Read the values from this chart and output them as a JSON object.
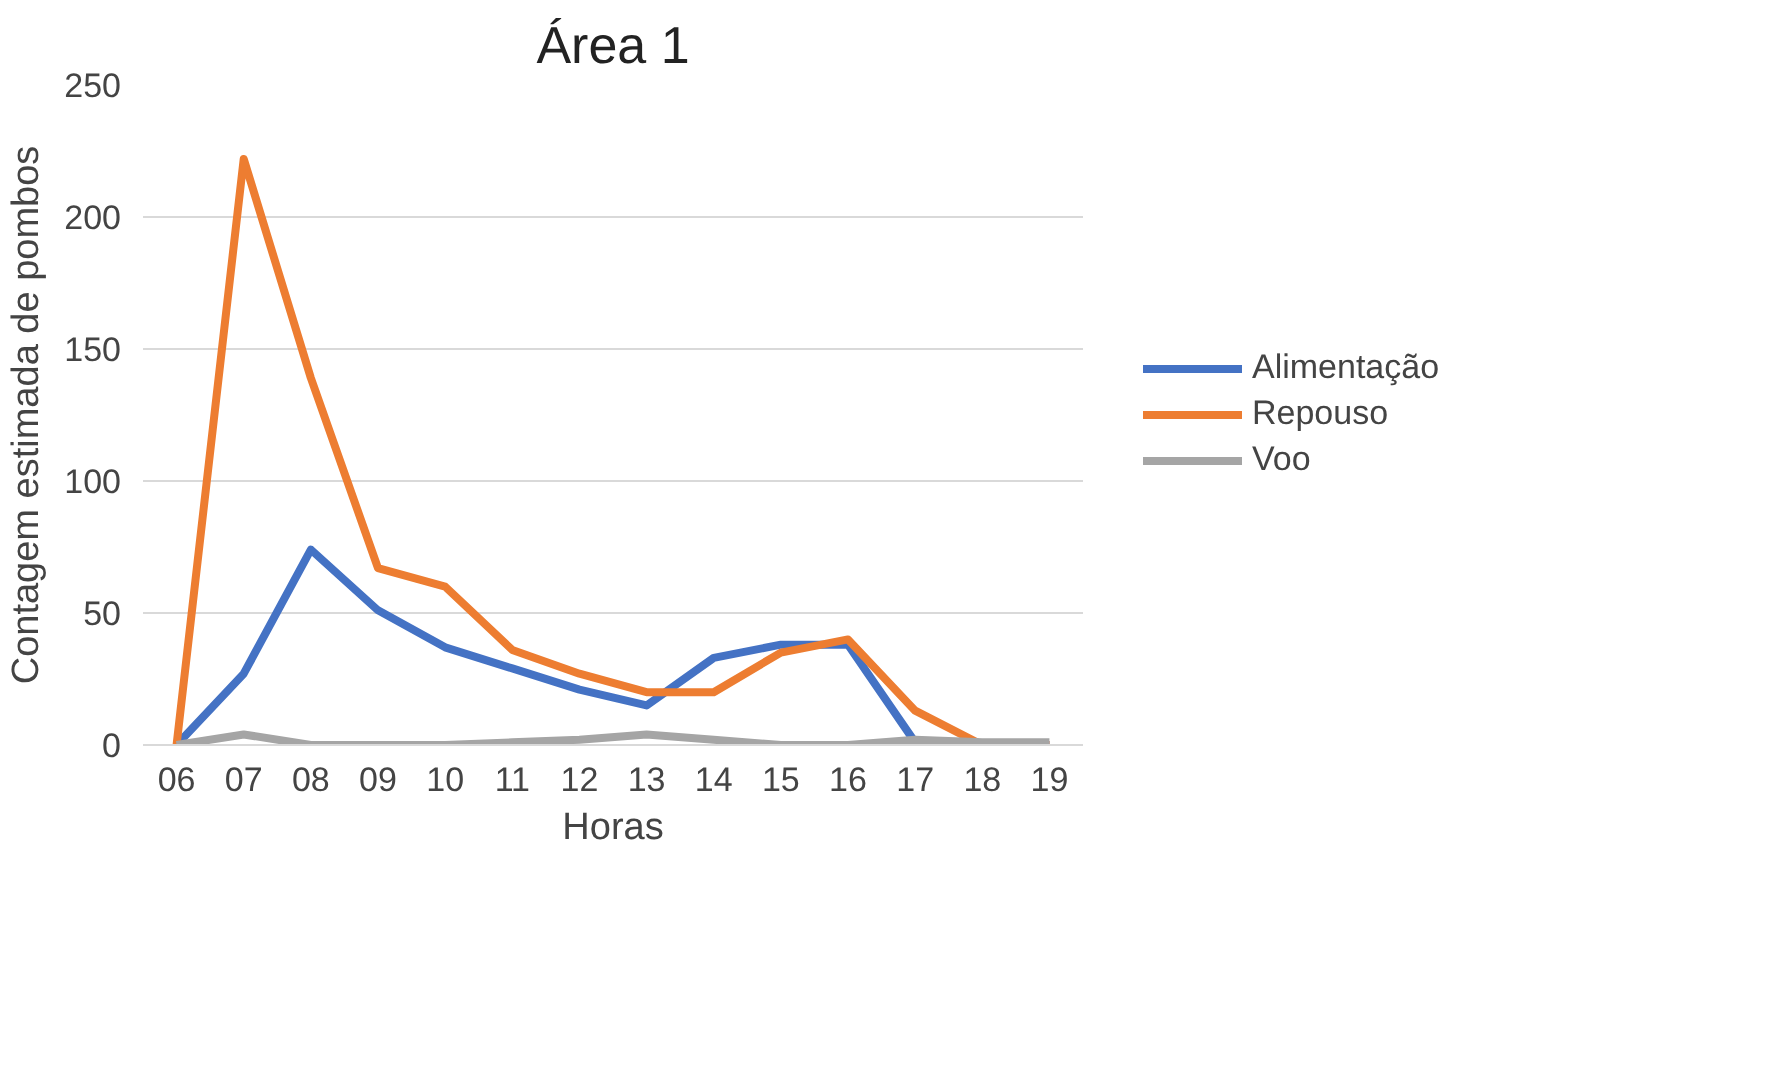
{
  "chart_data": {
    "type": "line",
    "title": "Área 1",
    "xlabel": "Horas",
    "ylabel": "Contagem estimada de pombos",
    "categories": [
      "06",
      "07",
      "08",
      "09",
      "10",
      "11",
      "12",
      "13",
      "14",
      "15",
      "16",
      "17",
      "18",
      "19"
    ],
    "series": [
      {
        "name": "Alimentação",
        "color": "#4472c4",
        "values": [
          0,
          27,
          74,
          51,
          37,
          29,
          21,
          15,
          33,
          38,
          38,
          1,
          0,
          0
        ]
      },
      {
        "name": "Repouso",
        "color": "#ed7d31",
        "values": [
          0,
          222,
          139,
          67,
          60,
          36,
          27,
          20,
          20,
          35,
          40,
          13,
          0,
          0
        ]
      },
      {
        "name": "Voo",
        "color": "#a5a5a5",
        "values": [
          0,
          4,
          0,
          0,
          0,
          1,
          2,
          4,
          2,
          0,
          0,
          2,
          1,
          1
        ]
      }
    ],
    "ylim": [
      0,
      250
    ],
    "yticks": [
      0,
      50,
      100,
      150,
      200,
      250
    ],
    "grid": "y",
    "legend": "right",
    "marker": "none",
    "line_style": "solid"
  }
}
